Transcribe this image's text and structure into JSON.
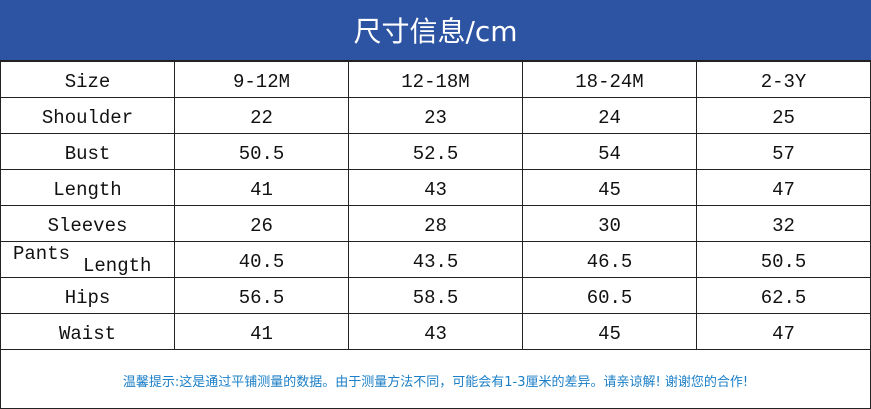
{
  "title": "尺寸信息/cm",
  "colors": {
    "header_bg": "#2d54a2",
    "note_text": "#1b7fc7"
  },
  "table": {
    "header": {
      "label": "Size",
      "sizes": [
        "9-12M",
        "12-18M",
        "18-24M",
        "2-3Y"
      ]
    },
    "rows": [
      {
        "label": "Shoulder",
        "values": [
          "22",
          "23",
          "24",
          "25"
        ]
      },
      {
        "label": "Bust",
        "values": [
          "50.5",
          "52.5",
          "54",
          "57"
        ]
      },
      {
        "label": "Length",
        "values": [
          "41",
          "43",
          "45",
          "47"
        ]
      },
      {
        "label": "Sleeves",
        "values": [
          "26",
          "28",
          "30",
          "32"
        ]
      },
      {
        "label_line1": "Pants",
        "label_line2": "Length",
        "values": [
          "40.5",
          "43.5",
          "46.5",
          "50.5"
        ]
      },
      {
        "label": "Hips",
        "values": [
          "56.5",
          "58.5",
          "60.5",
          "62.5"
        ]
      },
      {
        "label": "Waist",
        "values": [
          "41",
          "43",
          "45",
          "47"
        ]
      }
    ]
  },
  "note": "温馨提示:这是通过平铺测量的数据。由于测量方法不同，可能会有1-3厘米的差异。请亲谅解! 谢谢您的合作!"
}
